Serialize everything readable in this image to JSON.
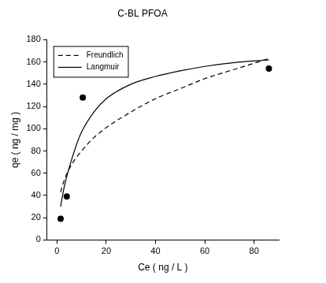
{
  "chart_data": {
    "type": "scatter",
    "title": "C-BL PFOA",
    "x_label": "Ce ( ng / L )",
    "y_label": "qe ( ng / mg )",
    "xlim": [
      -4,
      90
    ],
    "xticks": [
      0,
      20,
      40,
      60,
      80
    ],
    "ylim": [
      0,
      180
    ],
    "yticks": [
      0,
      20,
      40,
      60,
      80,
      100,
      120,
      140,
      160,
      180
    ],
    "grid": false,
    "legend": "top-left",
    "series": [
      {
        "name": "Freundlich",
        "type": "line",
        "line_style": "dashed",
        "color": "#000000",
        "x": [
          1.5,
          3,
          5,
          8,
          10,
          15,
          20,
          30,
          40,
          50,
          60,
          70,
          86
        ],
        "values": [
          43,
          54,
          64,
          74.5,
          80,
          92,
          101,
          115,
          127,
          136,
          145,
          152,
          163
        ]
      },
      {
        "name": "Langmuir",
        "type": "line",
        "line_style": "solid",
        "color": "#000000",
        "x": [
          1.5,
          3,
          5,
          8,
          10,
          15,
          20,
          30,
          40,
          50,
          60,
          70,
          86
        ],
        "values": [
          30,
          48,
          65,
          86,
          97,
          115,
          127,
          140,
          147,
          152,
          156,
          159,
          162
        ]
      },
      {
        "type": "scatter",
        "marker": "circle",
        "color": "#000000",
        "x": [
          1.5,
          4,
          10.5,
          86
        ],
        "values": [
          19,
          39,
          128,
          154
        ]
      }
    ]
  }
}
